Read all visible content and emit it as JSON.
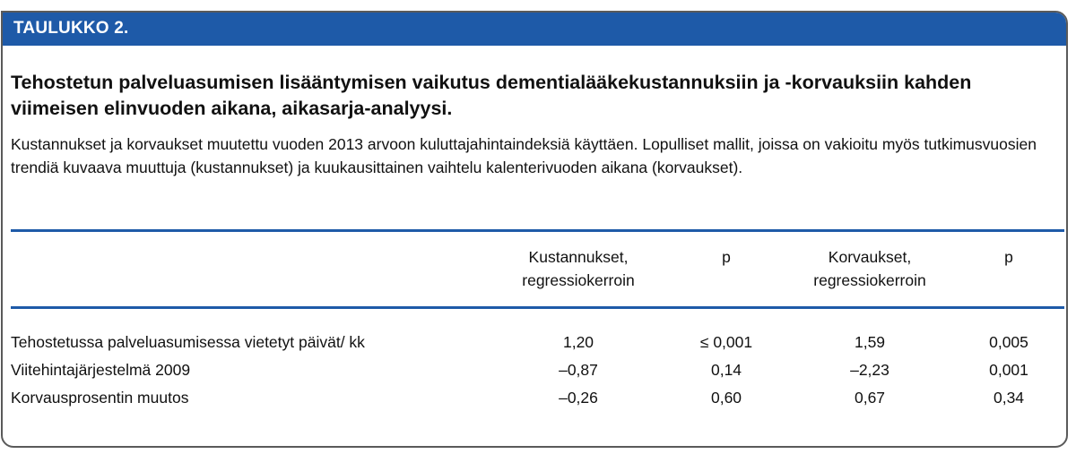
{
  "table_label": "TAULUKKO 2.",
  "title": "Tehostetun palveluasumisen lisääntymisen vaikutus dementialääkekustannuksiin ja -korvauksiin kahden viimeisen elinvuoden aikana, aikasarja-analyysi.",
  "description": "Kustannukset ja korvaukset muutettu vuoden 2013 arvoon kuluttajahintaindeksiä käyttäen. Lopulliset mallit, joissa on vakioitu myös tutkimusvuosien trendiä kuvaava muuttuja (kustannukset) ja kuukausittainen vaihtelu kalenterivuoden aikana (korvaukset).",
  "columns": {
    "costs_line1": "Kustannukset,",
    "costs_line2": "regressiokerroin",
    "p1": "p",
    "reimb_line1": "Korvaukset,",
    "reimb_line2": "regressiokerroin",
    "p2": "p"
  },
  "rows": [
    {
      "label": "Tehostetussa palveluasumisessa vietetyt päivät/ kk",
      "costs": "1,20",
      "p1": "≤ 0,001",
      "reimb": "1,59",
      "p2": "0,005"
    },
    {
      "label": "Viitehintajärjestelmä 2009",
      "costs": "–0,87",
      "p1": "0,14",
      "reimb": "–2,23",
      "p2": "0,001"
    },
    {
      "label": "Korvausprosentin muutos",
      "costs": "–0,26",
      "p1": "0,60",
      "reimb": "0,67",
      "p2": "0,34"
    }
  ],
  "colors": {
    "accent_blue": "#1e5aa8",
    "text": "#111111"
  }
}
